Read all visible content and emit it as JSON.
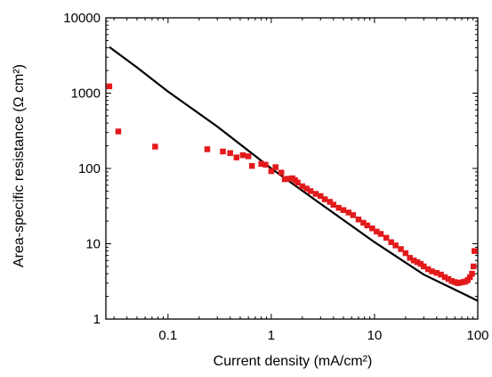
{
  "chart_data": {
    "type": "scatter",
    "title": "",
    "xlabel": "Current density (mA/cm²)",
    "ylabel": "Area-specific resistance (Ω cm²)",
    "x_scale": "log",
    "y_scale": "log",
    "xlim": [
      0.025,
      100
    ],
    "ylim": [
      1,
      10000
    ],
    "x_ticks": [
      {
        "value": 0.1,
        "label": "0.1"
      },
      {
        "value": 1,
        "label": "1"
      },
      {
        "value": 10,
        "label": "10"
      },
      {
        "value": 100,
        "label": "100"
      }
    ],
    "y_ticks": [
      {
        "value": 1,
        "label": "1"
      },
      {
        "value": 10,
        "label": "10"
      },
      {
        "value": 100,
        "label": "100"
      },
      {
        "value": 1000,
        "label": "1000"
      },
      {
        "value": 10000,
        "label": "10000"
      }
    ],
    "grid": false,
    "legend": "none",
    "colors": {
      "points": "#e31a1c",
      "line": "#000000"
    },
    "series": [
      {
        "type": "scatter",
        "marker": "square",
        "points": [
          [
            0.027,
            1230
          ],
          [
            0.033,
            310
          ],
          [
            0.075,
            195
          ],
          [
            0.24,
            180
          ],
          [
            0.34,
            168
          ],
          [
            0.4,
            160
          ],
          [
            0.46,
            140
          ],
          [
            0.53,
            150
          ],
          [
            0.6,
            145
          ],
          [
            0.65,
            108
          ],
          [
            0.8,
            115
          ],
          [
            0.88,
            112
          ],
          [
            1.0,
            92
          ],
          [
            1.1,
            104
          ],
          [
            1.25,
            88
          ],
          [
            1.35,
            72
          ],
          [
            1.45,
            73
          ],
          [
            1.6,
            74
          ],
          [
            1.7,
            70
          ],
          [
            1.8,
            65
          ],
          [
            2.0,
            58
          ],
          [
            2.2,
            54
          ],
          [
            2.4,
            50
          ],
          [
            2.7,
            46
          ],
          [
            3.0,
            43
          ],
          [
            3.3,
            39
          ],
          [
            3.7,
            36
          ],
          [
            4.0,
            33
          ],
          [
            4.5,
            30
          ],
          [
            5.0,
            28
          ],
          [
            5.6,
            26
          ],
          [
            6.2,
            24
          ],
          [
            7.0,
            21
          ],
          [
            7.8,
            19
          ],
          [
            8.5,
            17.5
          ],
          [
            9.5,
            16
          ],
          [
            10.5,
            14.5
          ],
          [
            11.5,
            13.5
          ],
          [
            13,
            12
          ],
          [
            14.5,
            10.5
          ],
          [
            16,
            9.5
          ],
          [
            18,
            8.5
          ],
          [
            20,
            7.5
          ],
          [
            22,
            6.5
          ],
          [
            24,
            6.0
          ],
          [
            26,
            5.7
          ],
          [
            28,
            5.4
          ],
          [
            30,
            5.0
          ],
          [
            33,
            4.6
          ],
          [
            36,
            4.3
          ],
          [
            40,
            4.1
          ],
          [
            44,
            3.9
          ],
          [
            48,
            3.6
          ],
          [
            52,
            3.4
          ],
          [
            56,
            3.2
          ],
          [
            60,
            3.1
          ],
          [
            64,
            3.0
          ],
          [
            68,
            3.05
          ],
          [
            72,
            3.1
          ],
          [
            76,
            3.15
          ],
          [
            80,
            3.3
          ],
          [
            84,
            3.6
          ],
          [
            88,
            4.0
          ],
          [
            91,
            5.0
          ],
          [
            93,
            8.0
          ]
        ]
      },
      {
        "type": "line",
        "points": [
          [
            0.027,
            4100
          ],
          [
            0.05,
            2200
          ],
          [
            0.1,
            1050
          ],
          [
            0.3,
            360
          ],
          [
            1.0,
            100
          ],
          [
            3.0,
            34
          ],
          [
            10,
            10.5
          ],
          [
            30,
            3.9
          ],
          [
            100,
            1.75
          ]
        ]
      }
    ]
  }
}
